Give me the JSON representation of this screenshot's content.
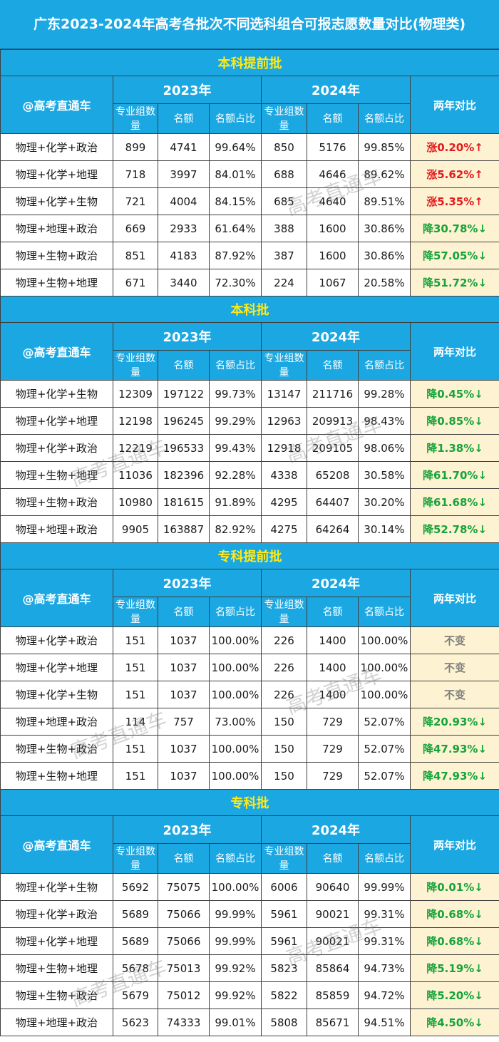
{
  "title": "广东2023-2024年高考各批次不同选科组合可报志愿数量对比(物理类)",
  "headers": {
    "brand": "@高考直通车",
    "year_2023": "2023年",
    "year_2024": "2024年",
    "compare": "两年对比",
    "col_groups": "专业组数量",
    "col_quota": "名额",
    "col_ratio": "名额占比"
  },
  "watermark": "高考直通车",
  "colors": {
    "header_blue": "#1aa7e2",
    "batch_yellow": "#ffe919",
    "up_red": "#e5191c",
    "down_green": "#17a33a",
    "same_gray": "#7f7f7f",
    "compare_bg": "#fdf3d2"
  },
  "batches": [
    {
      "name": "本科提前批",
      "rows": [
        {
          "combo": "物理+化学+政治",
          "g23": "899",
          "q23": "4741",
          "r23": "99.64%",
          "g24": "850",
          "q24": "5176",
          "r24": "99.85%",
          "cmp": "涨0.20%↑",
          "trend": "up"
        },
        {
          "combo": "物理+化学+地理",
          "g23": "718",
          "q23": "3997",
          "r23": "84.01%",
          "g24": "688",
          "q24": "4646",
          "r24": "89.62%",
          "cmp": "涨5.62%↑",
          "trend": "up"
        },
        {
          "combo": "物理+化学+生物",
          "g23": "721",
          "q23": "4004",
          "r23": "84.15%",
          "g24": "685",
          "q24": "4640",
          "r24": "89.51%",
          "cmp": "涨5.35%↑",
          "trend": "up"
        },
        {
          "combo": "物理+地理+政治",
          "g23": "669",
          "q23": "2933",
          "r23": "61.64%",
          "g24": "388",
          "q24": "1600",
          "r24": "30.86%",
          "cmp": "降30.78%↓",
          "trend": "down"
        },
        {
          "combo": "物理+生物+政治",
          "g23": "851",
          "q23": "4183",
          "r23": "87.92%",
          "g24": "387",
          "q24": "1600",
          "r24": "30.86%",
          "cmp": "降57.05%↓",
          "trend": "down"
        },
        {
          "combo": "物理+生物+地理",
          "g23": "671",
          "q23": "3440",
          "r23": "72.30%",
          "g24": "224",
          "q24": "1067",
          "r24": "20.58%",
          "cmp": "降51.72%↓",
          "trend": "down"
        }
      ]
    },
    {
      "name": "本科批",
      "rows": [
        {
          "combo": "物理+化学+生物",
          "g23": "12309",
          "q23": "197122",
          "r23": "99.73%",
          "g24": "13147",
          "q24": "211716",
          "r24": "99.28%",
          "cmp": "降0.45%↓",
          "trend": "down"
        },
        {
          "combo": "物理+化学+地理",
          "g23": "12198",
          "q23": "196245",
          "r23": "99.29%",
          "g24": "12963",
          "q24": "209913",
          "r24": "98.43%",
          "cmp": "降0.85%↓",
          "trend": "down"
        },
        {
          "combo": "物理+化学+政治",
          "g23": "12219",
          "q23": "196533",
          "r23": "99.43%",
          "g24": "12918",
          "q24": "209105",
          "r24": "98.06%",
          "cmp": "降1.38%↓",
          "trend": "down"
        },
        {
          "combo": "物理+生物+地理",
          "g23": "11036",
          "q23": "182396",
          "r23": "92.28%",
          "g24": "4338",
          "q24": "65208",
          "r24": "30.58%",
          "cmp": "降61.70%↓",
          "trend": "down"
        },
        {
          "combo": "物理+生物+政治",
          "g23": "10980",
          "q23": "181615",
          "r23": "91.89%",
          "g24": "4295",
          "q24": "64407",
          "r24": "30.20%",
          "cmp": "降61.68%↓",
          "trend": "down"
        },
        {
          "combo": "物理+地理+政治",
          "g23": "9905",
          "q23": "163887",
          "r23": "82.92%",
          "g24": "4275",
          "q24": "64264",
          "r24": "30.14%",
          "cmp": "降52.78%↓",
          "trend": "down"
        }
      ]
    },
    {
      "name": "专科提前批",
      "rows": [
        {
          "combo": "物理+化学+政治",
          "g23": "151",
          "q23": "1037",
          "r23": "100.00%",
          "g24": "226",
          "q24": "1400",
          "r24": "100.00%",
          "cmp": "不变",
          "trend": "same"
        },
        {
          "combo": "物理+化学+地理",
          "g23": "151",
          "q23": "1037",
          "r23": "100.00%",
          "g24": "226",
          "q24": "1400",
          "r24": "100.00%",
          "cmp": "不变",
          "trend": "same"
        },
        {
          "combo": "物理+化学+生物",
          "g23": "151",
          "q23": "1037",
          "r23": "100.00%",
          "g24": "226",
          "q24": "1400",
          "r24": "100.00%",
          "cmp": "不变",
          "trend": "same"
        },
        {
          "combo": "物理+地理+政治",
          "g23": "114",
          "q23": "757",
          "r23": "73.00%",
          "g24": "150",
          "q24": "729",
          "r24": "52.07%",
          "cmp": "降20.93%↓",
          "trend": "down"
        },
        {
          "combo": "物理+生物+政治",
          "g23": "151",
          "q23": "1037",
          "r23": "100.00%",
          "g24": "150",
          "q24": "729",
          "r24": "52.07%",
          "cmp": "降47.93%↓",
          "trend": "down"
        },
        {
          "combo": "物理+生物+地理",
          "g23": "151",
          "q23": "1037",
          "r23": "100.00%",
          "g24": "150",
          "q24": "729",
          "r24": "52.07%",
          "cmp": "降47.93%↓",
          "trend": "down"
        }
      ]
    },
    {
      "name": "专科批",
      "rows": [
        {
          "combo": "物理+化学+生物",
          "g23": "5692",
          "q23": "75075",
          "r23": "100.00%",
          "g24": "6006",
          "q24": "90640",
          "r24": "99.99%",
          "cmp": "降0.01%↓",
          "trend": "down"
        },
        {
          "combo": "物理+化学+政治",
          "g23": "5689",
          "q23": "75066",
          "r23": "99.99%",
          "g24": "5961",
          "q24": "90021",
          "r24": "99.31%",
          "cmp": "降0.68%↓",
          "trend": "down"
        },
        {
          "combo": "物理+化学+地理",
          "g23": "5689",
          "q23": "75066",
          "r23": "99.99%",
          "g24": "5961",
          "q24": "90021",
          "r24": "99.31%",
          "cmp": "降0.68%↓",
          "trend": "down"
        },
        {
          "combo": "物理+生物+地理",
          "g23": "5678",
          "q23": "75013",
          "r23": "99.92%",
          "g24": "5823",
          "q24": "85864",
          "r24": "94.73%",
          "cmp": "降5.19%↓",
          "trend": "down"
        },
        {
          "combo": "物理+生物+政治",
          "g23": "5679",
          "q23": "75012",
          "r23": "99.92%",
          "g24": "5822",
          "q24": "85859",
          "r24": "94.72%",
          "cmp": "降5.20%↓",
          "trend": "down"
        },
        {
          "combo": "物理+地理+政治",
          "g23": "5623",
          "q23": "74333",
          "r23": "99.01%",
          "g24": "5808",
          "q24": "85671",
          "r24": "94.51%",
          "cmp": "降4.50%↓",
          "trend": "down"
        }
      ]
    }
  ]
}
